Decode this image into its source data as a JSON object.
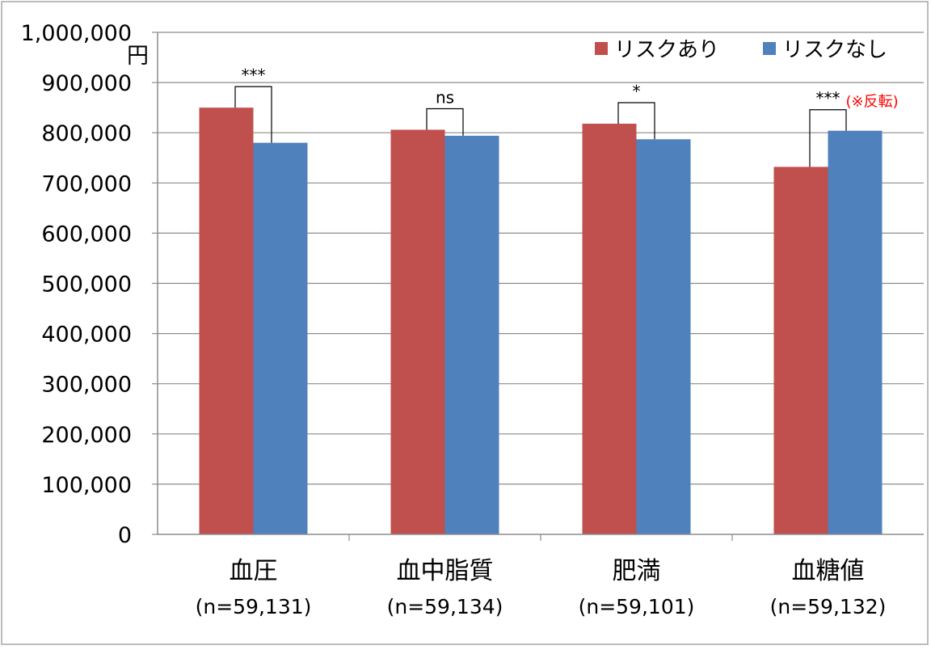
{
  "chart_data": {
    "type": "bar",
    "unit_label": "円",
    "categories": [
      "血圧",
      "血中脂質",
      "肥満",
      "血糖値"
    ],
    "category_notes": [
      "(n=59,131)",
      "(n=59,134)",
      "(n=59,101)",
      "(n=59,132)"
    ],
    "series": [
      {
        "name": "リスクあり",
        "color": "#c0504d",
        "values": [
          850000,
          806000,
          818000,
          732000
        ]
      },
      {
        "name": "リスクなし",
        "color": "#4f81bd",
        "values": [
          780000,
          794000,
          787000,
          804000
        ]
      }
    ],
    "ylim": [
      0,
      1000000
    ],
    "yticks": [
      0,
      100000,
      200000,
      300000,
      400000,
      500000,
      600000,
      700000,
      800000,
      900000,
      1000000
    ],
    "ytick_labels": [
      "0",
      "100,000",
      "200,000",
      "300,000",
      "400,000",
      "500,000",
      "600,000",
      "700,000",
      "800,000",
      "900,000",
      "1,000,000"
    ],
    "grid": true,
    "legend_position": "top-right",
    "significance": [
      {
        "category_index": 0,
        "label": "***",
        "note": ""
      },
      {
        "category_index": 1,
        "label": "ns",
        "note": ""
      },
      {
        "category_index": 2,
        "label": "*",
        "note": ""
      },
      {
        "category_index": 3,
        "label": "***",
        "note": "(※反転)"
      }
    ],
    "note_color": "#ff0000"
  }
}
